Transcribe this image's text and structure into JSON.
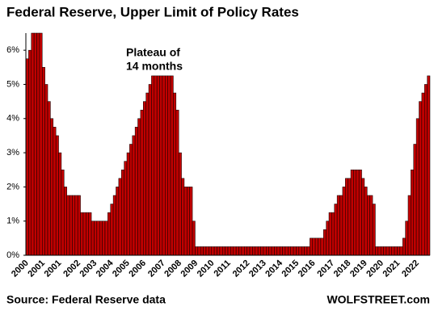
{
  "chart_data": {
    "type": "bar",
    "title": "Federal Reserve, Upper Limit of Policy Rates",
    "annotation": [
      "Plateau of",
      "14 months"
    ],
    "source": "Source: Federal Reserve data",
    "brand": "WOLFSTREET.com",
    "color": "#c00000",
    "grid": false,
    "categories": [
      "2000",
      null,
      null,
      null,
      null,
      null,
      "2001",
      null,
      null,
      null,
      null,
      null,
      "2001",
      null,
      null,
      null,
      null,
      null,
      null,
      "2002",
      null,
      null,
      null,
      null,
      null,
      "2003",
      null,
      null,
      null,
      null,
      null,
      "2004",
      null,
      null,
      null,
      null,
      null,
      "2005",
      null,
      null,
      null,
      null,
      null,
      "2006",
      null,
      null,
      null,
      null,
      null,
      null,
      "2007",
      null,
      null,
      null,
      null,
      null,
      "2008",
      null,
      null,
      null,
      null,
      null,
      "2009",
      null,
      null,
      null,
      null,
      null,
      "2010",
      null,
      null,
      null,
      null,
      null,
      "2011",
      null,
      null,
      null,
      null,
      null,
      null,
      "2012",
      null,
      null,
      null,
      null,
      null,
      "2013",
      null,
      null,
      null,
      null,
      null,
      "2014",
      null,
      null,
      null,
      null,
      null,
      "2015",
      null,
      null,
      null,
      null,
      null,
      "2016",
      null,
      null,
      null,
      null,
      null,
      null,
      "2017",
      null,
      null,
      null,
      null,
      null,
      "2018",
      null,
      null,
      null,
      null,
      null,
      "2019",
      null,
      null,
      null,
      null,
      null,
      "2020",
      null,
      null,
      null,
      null,
      null,
      "2021",
      null,
      null,
      null,
      null,
      null,
      null,
      "2022",
      null,
      null,
      null,
      null
    ],
    "values": [
      5.75,
      6,
      6.5,
      6.5,
      6.5,
      6.5,
      5.5,
      5,
      4.5,
      4,
      3.75,
      3.5,
      3,
      2.5,
      2,
      1.75,
      1.75,
      1.75,
      1.75,
      1.75,
      1.25,
      1.25,
      1.25,
      1.25,
      1,
      1,
      1,
      1,
      1,
      1,
      1.25,
      1.5,
      1.75,
      2,
      2.25,
      2.5,
      2.75,
      3,
      3.25,
      3.5,
      3.75,
      4,
      4.25,
      4.5,
      4.75,
      5,
      5.25,
      5.25,
      5.25,
      5.25,
      5.25,
      5.25,
      5.25,
      5.25,
      4.75,
      4.25,
      3,
      2.25,
      2,
      2,
      2,
      1,
      0.25,
      0.25,
      0.25,
      0.25,
      0.25,
      0.25,
      0.25,
      0.25,
      0.25,
      0.25,
      0.25,
      0.25,
      0.25,
      0.25,
      0.25,
      0.25,
      0.25,
      0.25,
      0.25,
      0.25,
      0.25,
      0.25,
      0.25,
      0.25,
      0.25,
      0.25,
      0.25,
      0.25,
      0.25,
      0.25,
      0.25,
      0.25,
      0.25,
      0.25,
      0.25,
      0.25,
      0.25,
      0.25,
      0.25,
      0.25,
      0.25,
      0.25,
      0.5,
      0.5,
      0.5,
      0.5,
      0.5,
      0.75,
      1,
      1.25,
      1.25,
      1.5,
      1.75,
      1.75,
      2,
      2.25,
      2.25,
      2.5,
      2.5,
      2.5,
      2.5,
      2.25,
      2,
      1.75,
      1.75,
      1.5,
      0.25,
      0.25,
      0.25,
      0.25,
      0.25,
      0.25,
      0.25,
      0.25,
      0.25,
      0.25,
      0.5,
      1,
      1.75,
      2.5,
      3.25,
      4,
      4.5,
      4.75,
      5,
      5.25
    ],
    "ylim": [
      0,
      6.5
    ],
    "yticks": [
      {
        "value": 0,
        "label": "0%"
      },
      {
        "value": 1,
        "label": "1%"
      },
      {
        "value": 2,
        "label": "2%"
      },
      {
        "value": 3,
        "label": "3%"
      },
      {
        "value": 4,
        "label": "4%"
      },
      {
        "value": 5,
        "label": "5%"
      },
      {
        "value": 6,
        "label": "6%"
      }
    ]
  }
}
